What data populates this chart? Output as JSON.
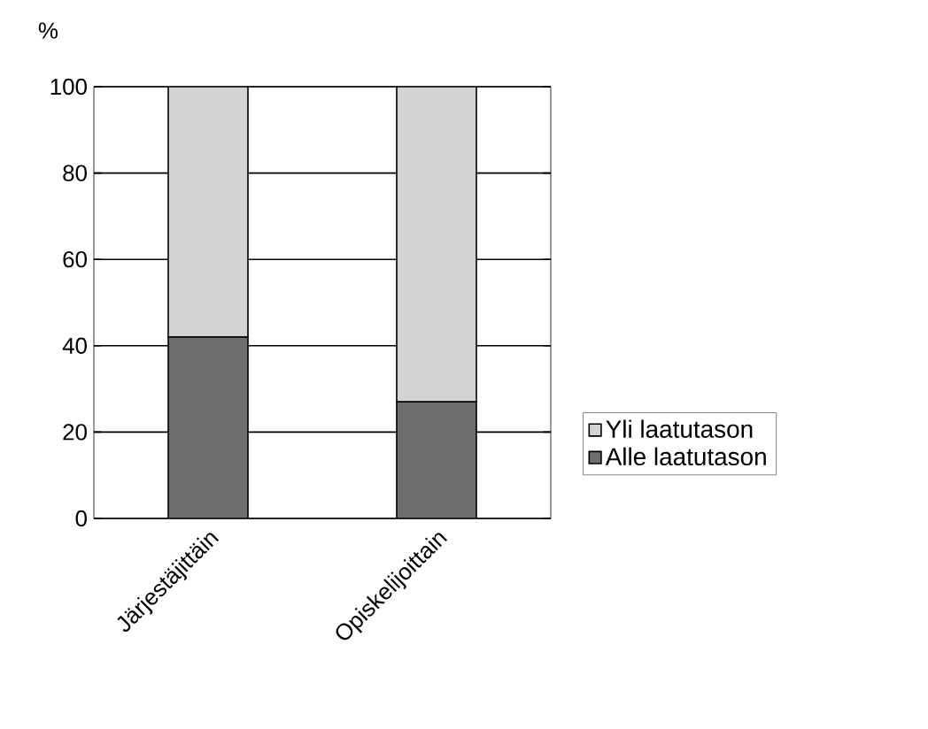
{
  "chart_data": {
    "type": "bar",
    "stacked": true,
    "ylabel": "%",
    "categories": [
      "Järjestäjittäin",
      "Opiskelijoittain"
    ],
    "series": [
      {
        "name": "Alle laatutason",
        "color": "#6d6e70",
        "values": [
          42,
          27
        ]
      },
      {
        "name": "Yli laatutason",
        "color": "#d3d3d3",
        "values": [
          58,
          73
        ]
      }
    ],
    "ylim": [
      0,
      100
    ],
    "yticks": [
      0,
      20,
      40,
      60,
      80,
      100
    ],
    "grid": "y",
    "legend": "right"
  }
}
